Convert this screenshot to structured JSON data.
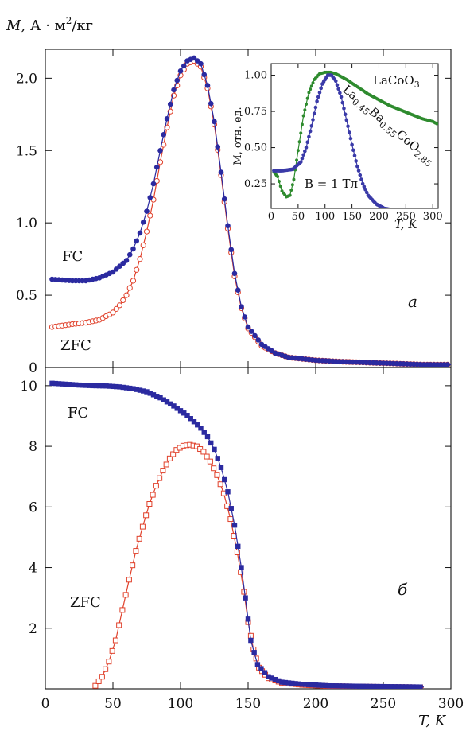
{
  "figure": {
    "ylabel": "M, А · м²/кг",
    "xlabel": "T, K"
  },
  "chart_data": [
    {
      "panel": "a",
      "type": "scatter",
      "panel_label": "а",
      "xlim": [
        0,
        300
      ],
      "ylim": [
        0,
        2.2
      ],
      "xticks": [
        0,
        50,
        100,
        150,
        200,
        250,
        300
      ],
      "yticks": [
        0,
        0.5,
        1.0,
        1.5,
        2.0
      ],
      "ytick_labels": [
        "0",
        "0.5",
        "1.0",
        "1.5",
        "2.0"
      ],
      "series": [
        {
          "name": "FC",
          "color": "#2b2aa0",
          "marker": "filled-circle",
          "points": [
            [
              5,
              0.61
            ],
            [
              20,
              0.6
            ],
            [
              30,
              0.6
            ],
            [
              40,
              0.62
            ],
            [
              50,
              0.66
            ],
            [
              60,
              0.74
            ],
            [
              65,
              0.82
            ],
            [
              70,
              0.93
            ],
            [
              75,
              1.08
            ],
            [
              80,
              1.27
            ],
            [
              85,
              1.5
            ],
            [
              90,
              1.72
            ],
            [
              95,
              1.92
            ],
            [
              100,
              2.05
            ],
            [
              105,
              2.12
            ],
            [
              110,
              2.14
            ],
            [
              115,
              2.1
            ],
            [
              120,
              1.95
            ],
            [
              125,
              1.7
            ],
            [
              130,
              1.35
            ],
            [
              135,
              0.98
            ],
            [
              140,
              0.65
            ],
            [
              145,
              0.42
            ],
            [
              150,
              0.28
            ],
            [
              160,
              0.16
            ],
            [
              170,
              0.1
            ],
            [
              180,
              0.07
            ],
            [
              200,
              0.05
            ],
            [
              220,
              0.04
            ],
            [
              250,
              0.03
            ],
            [
              280,
              0.02
            ],
            [
              300,
              0.02
            ]
          ]
        },
        {
          "name": "ZFC",
          "color": "#e0402a",
          "marker": "open-circle",
          "points": [
            [
              5,
              0.28
            ],
            [
              20,
              0.3
            ],
            [
              30,
              0.31
            ],
            [
              40,
              0.33
            ],
            [
              50,
              0.38
            ],
            [
              55,
              0.43
            ],
            [
              60,
              0.5
            ],
            [
              65,
              0.6
            ],
            [
              70,
              0.75
            ],
            [
              75,
              0.94
            ],
            [
              80,
              1.16
            ],
            [
              85,
              1.42
            ],
            [
              90,
              1.66
            ],
            [
              95,
              1.88
            ],
            [
              100,
              2.02
            ],
            [
              105,
              2.1
            ],
            [
              110,
              2.12
            ],
            [
              115,
              2.08
            ],
            [
              120,
              1.93
            ],
            [
              125,
              1.68
            ],
            [
              130,
              1.33
            ],
            [
              135,
              0.96
            ],
            [
              140,
              0.63
            ],
            [
              145,
              0.41
            ],
            [
              150,
              0.27
            ],
            [
              160,
              0.15
            ],
            [
              170,
              0.1
            ],
            [
              180,
              0.07
            ],
            [
              200,
              0.05
            ],
            [
              220,
              0.04
            ],
            [
              250,
              0.03
            ],
            [
              280,
              0.02
            ],
            [
              300,
              0.02
            ]
          ]
        }
      ],
      "series_labels": [
        "FC",
        "ZFC"
      ],
      "inset": {
        "xlabel": "T, K",
        "ylabel": "M, отн. ед.",
        "xlim": [
          0,
          310
        ],
        "ylim": [
          0.08,
          1.08
        ],
        "xticks": [
          0,
          50,
          100,
          150,
          200,
          250,
          300
        ],
        "yticks": [
          0.25,
          0.5,
          0.75,
          1.0
        ],
        "ytick_labels": [
          "0.25",
          "0.50",
          "0.75",
          "1.00"
        ],
        "annotation": "B = 1 Тл",
        "series": [
          {
            "name": "LaCoO3",
            "label_main": "LaCoO",
            "label_sub": "3",
            "color": "#2e8b2e",
            "points": [
              [
                5,
                0.33
              ],
              [
                12,
                0.3
              ],
              [
                20,
                0.2
              ],
              [
                28,
                0.16
              ],
              [
                35,
                0.17
              ],
              [
                42,
                0.28
              ],
              [
                50,
                0.48
              ],
              [
                60,
                0.72
              ],
              [
                70,
                0.88
              ],
              [
                80,
                0.97
              ],
              [
                90,
                1.01
              ],
              [
                100,
                1.02
              ],
              [
                110,
                1.02
              ],
              [
                120,
                1.01
              ],
              [
                140,
                0.97
              ],
              [
                160,
                0.92
              ],
              [
                180,
                0.87
              ],
              [
                200,
                0.83
              ],
              [
                220,
                0.79
              ],
              [
                240,
                0.76
              ],
              [
                260,
                0.73
              ],
              [
                280,
                0.7
              ],
              [
                300,
                0.68
              ],
              [
                310,
                0.66
              ]
            ]
          },
          {
            "name": "La0.45Ba0.55CoO2.85",
            "label_parts": [
              "La",
              "0.45",
              "Ba",
              "0.55",
              "CoO",
              "2.85"
            ],
            "color": "#3a3aa8",
            "points": [
              [
                5,
                0.34
              ],
              [
                20,
                0.34
              ],
              [
                40,
                0.35
              ],
              [
                55,
                0.4
              ],
              [
                65,
                0.5
              ],
              [
                75,
                0.65
              ],
              [
                85,
                0.82
              ],
              [
                95,
                0.94
              ],
              [
                105,
                1.0
              ],
              [
                112,
                1.0
              ],
              [
                120,
                0.96
              ],
              [
                130,
                0.85
              ],
              [
                140,
                0.69
              ],
              [
                150,
                0.52
              ],
              [
                160,
                0.37
              ],
              [
                170,
                0.25
              ],
              [
                180,
                0.17
              ],
              [
                195,
                0.11
              ],
              [
                210,
                0.08
              ],
              [
                240,
                0.06
              ],
              [
                270,
                0.05
              ],
              [
                300,
                0.05
              ],
              [
                310,
                0.05
              ]
            ]
          }
        ]
      }
    },
    {
      "panel": "b",
      "type": "scatter",
      "panel_label": "б",
      "xlim": [
        0,
        300
      ],
      "ylim": [
        0,
        10.6
      ],
      "xticks": [
        0,
        50,
        100,
        150,
        200,
        250,
        300
      ],
      "xtick_labels": [
        "0",
        "50",
        "100",
        "150",
        "200",
        "250",
        "300"
      ],
      "yticks": [
        2,
        4,
        6,
        8,
        10
      ],
      "ytick_labels": [
        "2",
        "4",
        "6",
        "8",
        "10"
      ],
      "series": [
        {
          "name": "FC",
          "color": "#2b2aa0",
          "marker": "filled-square",
          "points": [
            [
              5,
              10.08
            ],
            [
              15,
              10.05
            ],
            [
              25,
              10.02
            ],
            [
              35,
              10.0
            ],
            [
              45,
              9.99
            ],
            [
              55,
              9.96
            ],
            [
              65,
              9.9
            ],
            [
              75,
              9.8
            ],
            [
              85,
              9.6
            ],
            [
              95,
              9.33
            ],
            [
              105,
              9.02
            ],
            [
              115,
              8.6
            ],
            [
              120,
              8.32
            ],
            [
              125,
              7.9
            ],
            [
              130,
              7.3
            ],
            [
              135,
              6.5
            ],
            [
              140,
              5.4
            ],
            [
              145,
              4.0
            ],
            [
              148,
              3.0
            ],
            [
              152,
              1.6
            ],
            [
              157,
              0.8
            ],
            [
              165,
              0.4
            ],
            [
              175,
              0.22
            ],
            [
              190,
              0.15
            ],
            [
              210,
              0.1
            ],
            [
              240,
              0.08
            ],
            [
              280,
              0.06
            ]
          ]
        },
        {
          "name": "ZFC",
          "color": "#e0402a",
          "marker": "open-square",
          "points": [
            [
              37,
              0.1
            ],
            [
              42,
              0.4
            ],
            [
              47,
              0.9
            ],
            [
              52,
              1.6
            ],
            [
              57,
              2.6
            ],
            [
              62,
              3.6
            ],
            [
              67,
              4.55
            ],
            [
              72,
              5.35
            ],
            [
              77,
              6.1
            ],
            [
              82,
              6.7
            ],
            [
              87,
              7.2
            ],
            [
              92,
              7.6
            ],
            [
              97,
              7.88
            ],
            [
              102,
              8.02
            ],
            [
              107,
              8.05
            ],
            [
              112,
              8.0
            ],
            [
              117,
              7.82
            ],
            [
              122,
              7.5
            ],
            [
              127,
              7.05
            ],
            [
              132,
              6.45
            ],
            [
              137,
              5.6
            ],
            [
              142,
              4.5
            ],
            [
              147,
              3.2
            ],
            [
              150,
              2.2
            ],
            [
              154,
              1.3
            ],
            [
              158,
              0.7
            ],
            [
              165,
              0.35
            ],
            [
              175,
              0.2
            ],
            [
              190,
              0.13
            ],
            [
              210,
              0.09
            ],
            [
              240,
              0.07
            ],
            [
              280,
              0.05
            ]
          ]
        }
      ],
      "series_labels": [
        "FC",
        "ZFC"
      ]
    }
  ]
}
